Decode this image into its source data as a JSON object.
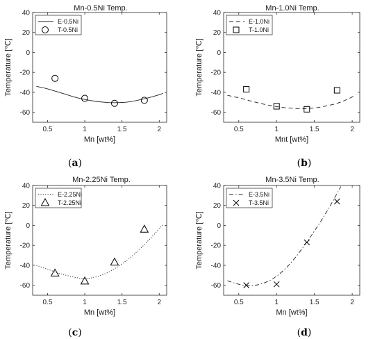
{
  "chart_data": [
    {
      "type": "line",
      "title": "Mn-0.5Ni Temp.",
      "xlabel": "Mn [wt%]",
      "ylabel": "Temperature [℃]",
      "panel_label": "a",
      "xlim": [
        0.3,
        2.1
      ],
      "ylim": [
        -70,
        40
      ],
      "xticks": [
        0.5,
        1,
        1.5,
        2
      ],
      "xtick_labels": [
        "0.5",
        "1",
        "1.5",
        "2"
      ],
      "yticks": [
        -60,
        -40,
        -20,
        0,
        20,
        40
      ],
      "ytick_labels": [
        "-60",
        "-40",
        "-20",
        "0",
        "20",
        "40"
      ],
      "legend_position": "top-left",
      "series": [
        {
          "name": "E-0.5Ni",
          "style": "solid",
          "x": [
            0.35,
            0.5,
            0.7,
            0.9,
            1.1,
            1.3,
            1.45,
            1.6,
            1.8,
            1.95,
            2.05
          ],
          "y": [
            -34,
            -36.5,
            -41,
            -45.5,
            -48.5,
            -50.2,
            -50.3,
            -49.5,
            -46.5,
            -43.5,
            -41
          ]
        },
        {
          "name": "T-0.5Ni",
          "marker": "circle",
          "x": [
            0.6,
            1.0,
            1.4,
            1.8
          ],
          "y": [
            -26,
            -46,
            -51,
            -48
          ]
        }
      ]
    },
    {
      "type": "line",
      "title": "Mn-1.0Ni Temp.",
      "xlabel": "Mnt [wt%]",
      "ylabel": "Temperature [℃]",
      "panel_label": "b",
      "xlim": [
        0.3,
        2.1
      ],
      "ylim": [
        -70,
        40
      ],
      "xticks": [
        0.5,
        1,
        1.5,
        2
      ],
      "xtick_labels": [
        "0.5",
        "1",
        "1.5",
        "2"
      ],
      "yticks": [
        -60,
        -40,
        -20,
        0,
        20,
        40
      ],
      "ytick_labels": [
        "-60",
        "-40",
        "-20",
        "0",
        "20",
        "40"
      ],
      "legend_position": "top-left",
      "series": [
        {
          "name": "E-1.0Ni",
          "style": "dashed",
          "x": [
            0.35,
            0.5,
            0.7,
            0.9,
            1.1,
            1.3,
            1.45,
            1.6,
            1.8,
            1.95,
            2.05
          ],
          "y": [
            -43,
            -45.5,
            -49.5,
            -53,
            -55.3,
            -56.3,
            -56,
            -54.5,
            -51,
            -46.5,
            -42.5
          ]
        },
        {
          "name": "T-1.0Ni",
          "marker": "square",
          "x": [
            0.6,
            1.0,
            1.4,
            1.8
          ],
          "y": [
            -37,
            -54,
            -57,
            -38
          ]
        }
      ]
    },
    {
      "type": "line",
      "title": "Mn-2.25Ni Temp.",
      "xlabel": "Mn [wt%]",
      "ylabel": "Temperature [℃]",
      "panel_label": "c",
      "xlim": [
        0.3,
        2.1
      ],
      "ylim": [
        -70,
        40
      ],
      "xticks": [
        0.5,
        1,
        1.5,
        2
      ],
      "xtick_labels": [
        "0.5",
        "1",
        "1.5",
        "2"
      ],
      "yticks": [
        -60,
        -40,
        -20,
        0,
        20,
        40
      ],
      "ytick_labels": [
        "-60",
        "-40",
        "-20",
        "0",
        "20",
        "40"
      ],
      "legend_position": "top-left",
      "series": [
        {
          "name": "E-2.25Ni",
          "style": "dotted",
          "x": [
            0.35,
            0.5,
            0.7,
            0.9,
            1.0,
            1.1,
            1.3,
            1.5,
            1.7,
            1.9,
            2.05
          ],
          "y": [
            -40,
            -44,
            -49,
            -52.5,
            -53,
            -52.5,
            -47.5,
            -38.5,
            -26.5,
            -11.5,
            1
          ]
        },
        {
          "name": "T-2.25Ni",
          "marker": "triangle",
          "x": [
            0.6,
            1.0,
            1.4,
            1.8
          ],
          "y": [
            -48,
            -56,
            -37,
            -4
          ]
        }
      ]
    },
    {
      "type": "line",
      "title": "Mn-3.5Ni Temp.",
      "xlabel": "Mn [wt%]",
      "ylabel": "Temperature [℃]",
      "panel_label": "d",
      "xlim": [
        0.3,
        2.1
      ],
      "ylim": [
        -70,
        40
      ],
      "xticks": [
        0.5,
        1,
        1.5,
        2
      ],
      "xtick_labels": [
        "0.5",
        "1",
        "1.5",
        "2"
      ],
      "yticks": [
        -60,
        -40,
        -20,
        0,
        20,
        40
      ],
      "ytick_labels": [
        "-60",
        "-40",
        "-20",
        "0",
        "20",
        "40"
      ],
      "legend_position": "top-left",
      "series": [
        {
          "name": "E-3.5Ni",
          "style": "dashdot",
          "x": [
            0.35,
            0.5,
            0.65,
            0.8,
            0.95,
            1.1,
            1.25,
            1.4,
            1.55,
            1.7,
            1.85
          ],
          "y": [
            -55.5,
            -59,
            -60.5,
            -58.5,
            -53.5,
            -44.5,
            -32,
            -16.5,
            0,
            18.5,
            39
          ]
        },
        {
          "name": "T-3.5Ni",
          "marker": "x",
          "x": [
            0.6,
            1.0,
            1.4,
            1.8
          ],
          "y": [
            -60,
            -59,
            -17,
            24
          ]
        }
      ]
    }
  ]
}
